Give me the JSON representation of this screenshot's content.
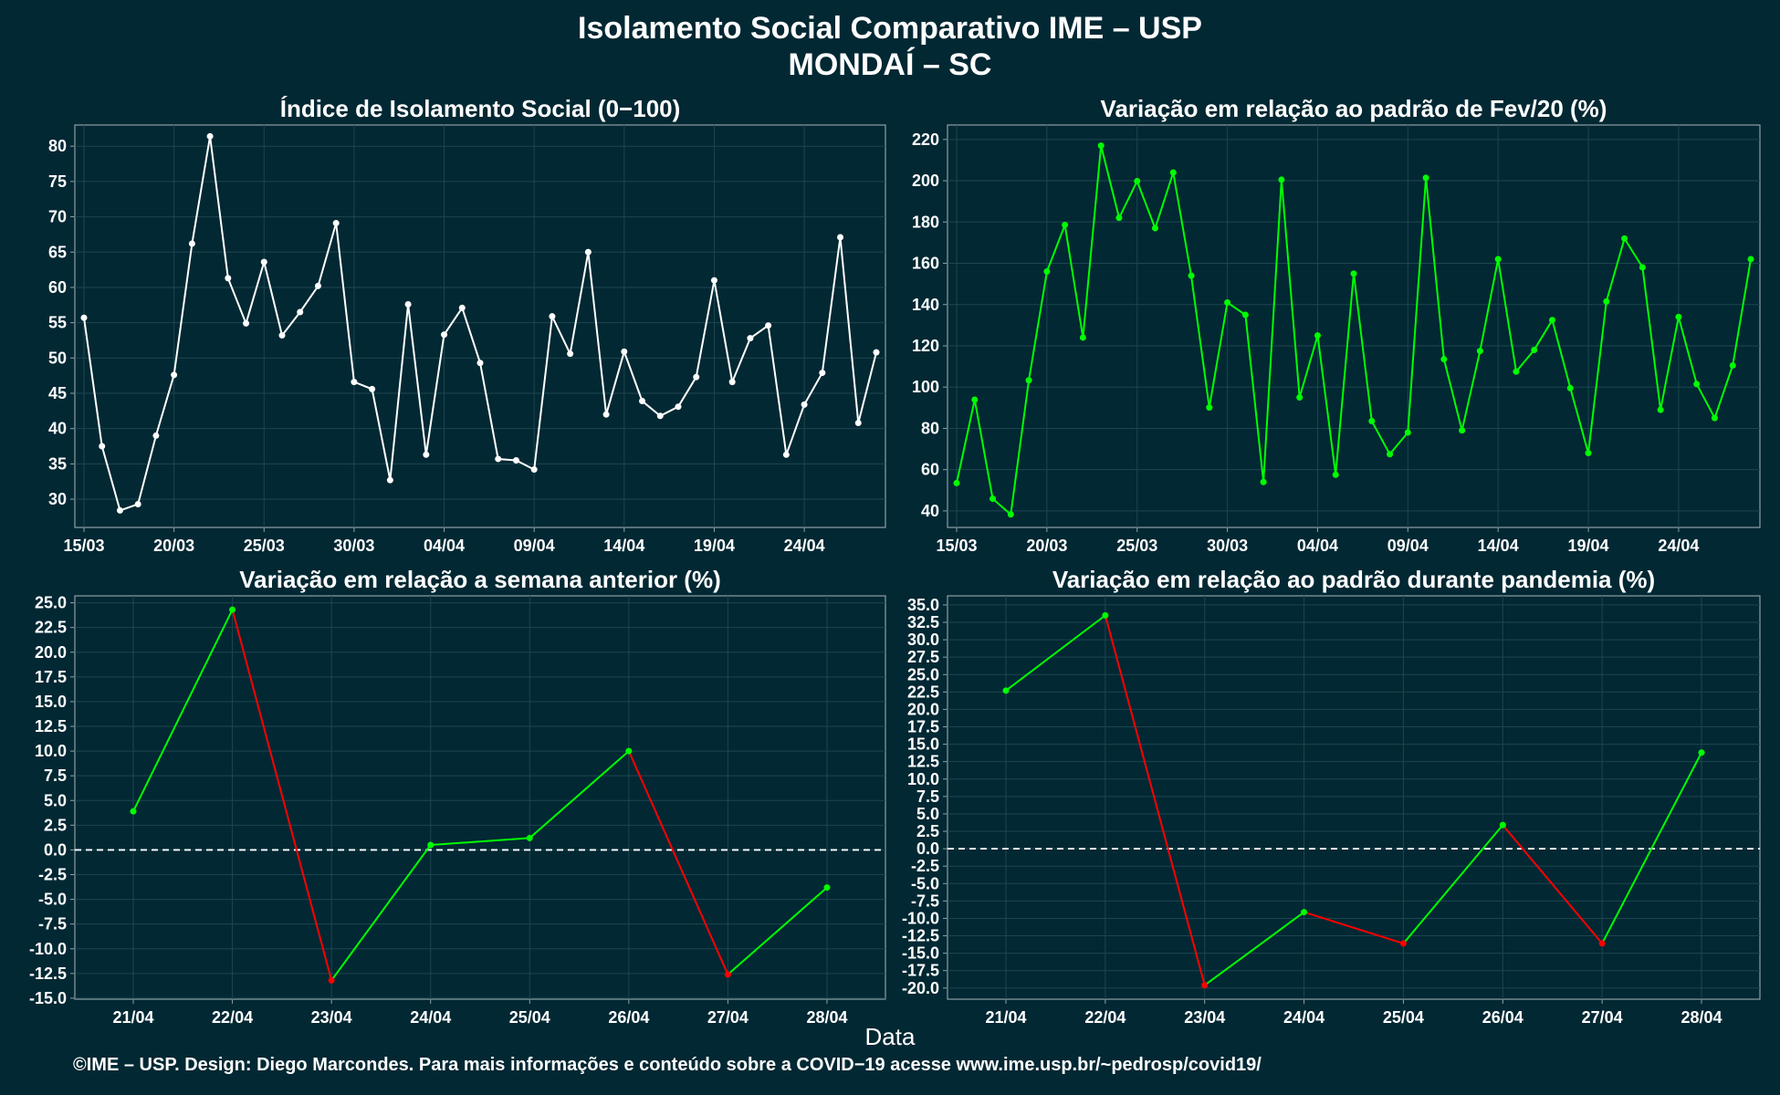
{
  "header": {
    "title": "Isolamento Social Comparativo IME – USP",
    "subtitle": "MONDAÍ – SC"
  },
  "xlabel": "Data",
  "footer": "©IME – USP. Design: Diego Marcondes. Para mais informações e conteúdo sobre a COVID−19 acesse www.ime.usp.br/~pedrosp/covid19/",
  "colors": {
    "background": "#022833",
    "white_line": "#ffffff",
    "green_line": "#00ff00",
    "red_line": "#ff0000"
  },
  "chart_data": [
    {
      "type": "line",
      "title": "Índice de Isolamento Social (0−100)",
      "x_start": "15/03",
      "x_tick_labels": [
        "15/03",
        "20/03",
        "25/03",
        "30/03",
        "04/04",
        "09/04",
        "14/04",
        "19/04",
        "24/04"
      ],
      "y_ticks": [
        30,
        35,
        40,
        45,
        50,
        55,
        60,
        65,
        70,
        75,
        80
      ],
      "ylim": [
        26,
        83
      ],
      "color": "white",
      "values": [
        55.7,
        37.5,
        28.4,
        29.3,
        39.0,
        47.6,
        66.2,
        81.4,
        61.3,
        54.9,
        63.6,
        53.2,
        56.5,
        60.2,
        69.1,
        46.6,
        45.6,
        32.7,
        57.6,
        36.3,
        53.3,
        57.1,
        49.3,
        35.7,
        35.5,
        34.2,
        55.9,
        50.6,
        65.0,
        42.0,
        50.9,
        43.9,
        41.8,
        43.1,
        47.3,
        61.0,
        46.6,
        52.8,
        54.6,
        36.3,
        43.4,
        47.9,
        67.1,
        40.8,
        50.8
      ]
    },
    {
      "type": "line",
      "title": "Variação em relação ao padrão de Fev/20 (%)",
      "x_start": "15/03",
      "x_tick_labels": [
        "15/03",
        "20/03",
        "25/03",
        "30/03",
        "04/04",
        "09/04",
        "14/04",
        "19/04",
        "24/04"
      ],
      "y_ticks": [
        40,
        60,
        80,
        100,
        120,
        140,
        160,
        180,
        200,
        220
      ],
      "ylim": [
        32,
        227
      ],
      "color": "green",
      "values": [
        53.5,
        93.9,
        45.9,
        38.3,
        103.3,
        156.0,
        178.6,
        124.0,
        217.0,
        182.0,
        199.8,
        177.0,
        204.0,
        154.0,
        90.1,
        141.0,
        135.0,
        54.0,
        200.5,
        95.0,
        125.0,
        57.5,
        155.0,
        83.5,
        67.5,
        78.0,
        201.4,
        113.5,
        79.0,
        117.5,
        162.0,
        107.5,
        118.0,
        132.5,
        99.5,
        68.0,
        141.5,
        172.0,
        158.0,
        89.0,
        134.0,
        101.5,
        85.0,
        110.5,
        162.0
      ]
    },
    {
      "type": "line",
      "title": "Variação em relação a semana anterior (%)",
      "categories": [
        "21/04",
        "22/04",
        "23/04",
        "24/04",
        "25/04",
        "26/04",
        "27/04",
        "28/04"
      ],
      "values": [
        3.9,
        24.3,
        -13.2,
        0.5,
        1.2,
        10.0,
        -12.6,
        -3.8
      ],
      "y_ticks": [
        -15.0,
        -12.5,
        -10.0,
        -7.5,
        -5.0,
        -2.5,
        0.0,
        2.5,
        5.0,
        7.5,
        10.0,
        12.5,
        15.0,
        17.5,
        20.0,
        22.5,
        25.0
      ],
      "ylim": [
        -15.1,
        25.7
      ],
      "reference_line": 0,
      "color_rule": "segment green when rising, red when falling"
    },
    {
      "type": "line",
      "title": "Variação em relação ao padrão durante pandemia (%)",
      "categories": [
        "21/04",
        "22/04",
        "23/04",
        "24/04",
        "25/04",
        "26/04",
        "27/04",
        "28/04"
      ],
      "values": [
        22.7,
        33.5,
        -19.6,
        -9.1,
        -13.6,
        3.4,
        -13.6,
        13.8
      ],
      "y_ticks": [
        -20.0,
        -17.5,
        -15.0,
        -12.5,
        -10.0,
        -7.5,
        -5.0,
        -2.5,
        0.0,
        2.5,
        5.0,
        7.5,
        10.0,
        12.5,
        15.0,
        17.5,
        20.0,
        22.5,
        25.0,
        27.5,
        30.0,
        32.5,
        35.0
      ],
      "ylim": [
        -21.6,
        36.3
      ],
      "reference_line": 0,
      "color_rule": "segment green when rising, red when falling"
    }
  ]
}
